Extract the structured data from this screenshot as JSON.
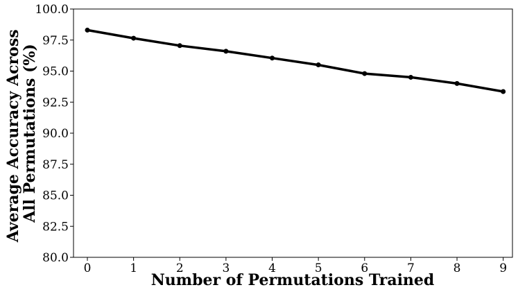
{
  "chart_data": {
    "type": "line",
    "title": "",
    "xlabel": "Number of Permutations Trained",
    "ylabel_lines": [
      "Average Accuracy Across",
      "All Permutations (%)"
    ],
    "x": [
      0,
      1,
      2,
      3,
      4,
      5,
      6,
      7,
      8,
      9
    ],
    "series": [
      {
        "values": [
          98.3,
          97.65,
          97.05,
          96.6,
          96.05,
          95.5,
          94.8,
          94.5,
          94.0,
          93.35
        ],
        "color": "#000000"
      }
    ],
    "xlim": [
      -0.3,
      9.2
    ],
    "ylim": [
      80.0,
      100.0
    ],
    "xticks": [
      0,
      1,
      2,
      3,
      4,
      5,
      6,
      7,
      8,
      9
    ],
    "xtick_labels": [
      "0",
      "1",
      "2",
      "3",
      "4",
      "5",
      "6",
      "7",
      "8",
      "9"
    ],
    "yticks": [
      80.0,
      82.5,
      85.0,
      87.5,
      90.0,
      92.5,
      95.0,
      97.5,
      100.0
    ],
    "ytick_labels": [
      "80.0",
      "82.5",
      "85.0",
      "87.5",
      "90.0",
      "92.5",
      "95.0",
      "97.5",
      "100.0"
    ],
    "grid": false,
    "legend": "none"
  }
}
